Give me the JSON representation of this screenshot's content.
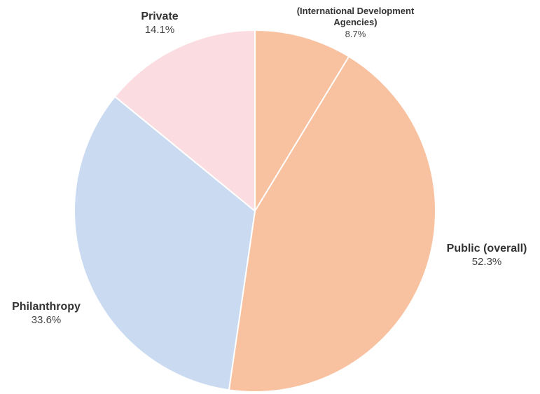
{
  "chart_data": {
    "type": "pie",
    "start_angle_deg": 0,
    "direction": "clockwise",
    "slices": [
      {
        "label": "Public (overall)",
        "value": 52.3,
        "value_label": "52.3%",
        "color": "#f8c2a1"
      },
      {
        "label": "Philanthropy",
        "value": 33.6,
        "value_label": "33.6%",
        "color": "#c9daf1"
      },
      {
        "label": "Private",
        "value": 14.1,
        "value_label": "14.1%",
        "color": "#fbdce1"
      }
    ],
    "sub_slice": {
      "parent": "Public (overall)",
      "label_line1": "(International Development",
      "label_line2": "Agencies)",
      "value": 8.7,
      "value_label": "8.7%",
      "position": "start of parent slice"
    },
    "separator_color": "#ffffff"
  }
}
